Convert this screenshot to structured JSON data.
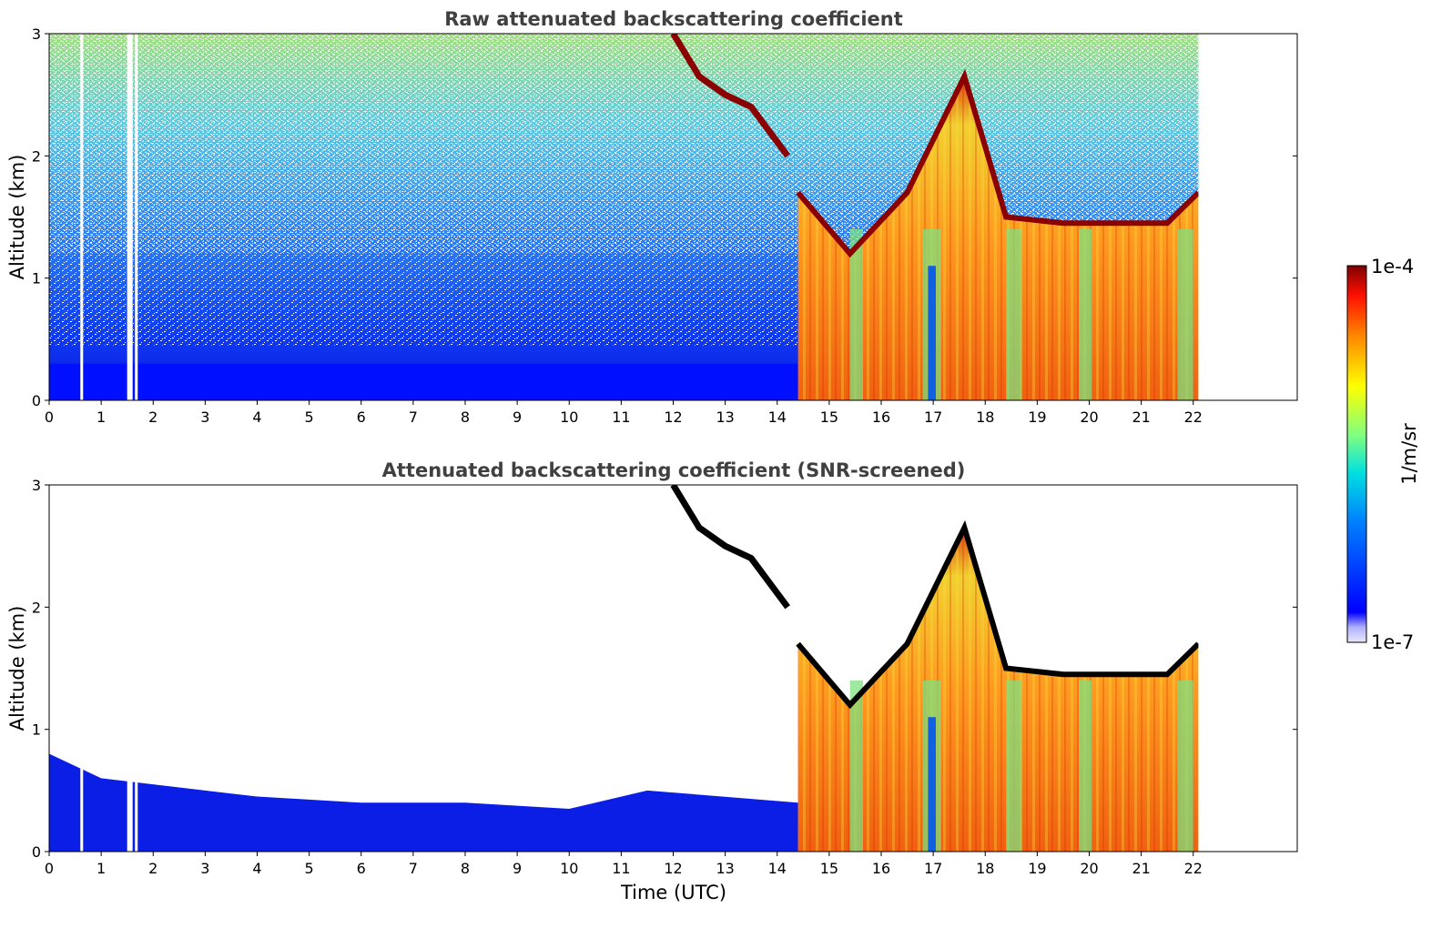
{
  "chart_data": [
    {
      "type": "heatmap",
      "title": "Raw attenuated backscattering coefficient",
      "xlabel": "",
      "ylabel": "Altitude (km)",
      "xlim": [
        0,
        24
      ],
      "ylim": [
        0,
        3
      ],
      "xticks": [
        "0",
        "1",
        "2",
        "3",
        "4",
        "5",
        "6",
        "7",
        "8",
        "9",
        "10",
        "11",
        "12",
        "13",
        "14",
        "15",
        "16",
        "17",
        "18",
        "19",
        "20",
        "21",
        "22"
      ],
      "yticks": [
        "0",
        "1",
        "2",
        "3"
      ],
      "data_end_time": 22.1,
      "features": [
        {
          "name": "noise floor (blue, surface layer)",
          "time_range": [
            0,
            14.4
          ],
          "altitude_range": [
            0,
            0.3
          ]
        },
        {
          "name": "data gaps",
          "times": [
            0.6,
            1.5,
            1.65
          ]
        },
        {
          "name": "descending layer",
          "points": [
            [
              12.0,
              3.0
            ],
            [
              12.5,
              2.65
            ],
            [
              13.0,
              2.5
            ],
            [
              13.5,
              2.4
            ]
          ]
        },
        {
          "name": "fog / low cloud onset",
          "time": 14.4
        },
        {
          "name": "cloud top",
          "points": [
            [
              14.4,
              1.7
            ],
            [
              15.4,
              1.2
            ],
            [
              16.5,
              1.7
            ],
            [
              17.6,
              2.65
            ],
            [
              18.4,
              1.5
            ],
            [
              19.5,
              1.45
            ],
            [
              20.5,
              1.45
            ],
            [
              21.5,
              1.45
            ],
            [
              22.1,
              1.7
            ]
          ]
        }
      ],
      "grid": false
    },
    {
      "type": "heatmap",
      "title": "Attenuated backscattering coefficient (SNR-screened)",
      "xlabel": "Time (UTC)",
      "ylabel": "Altitude (km)",
      "xlim": [
        0,
        24
      ],
      "ylim": [
        0,
        3
      ],
      "xticks": [
        "0",
        "1",
        "2",
        "3",
        "4",
        "5",
        "6",
        "7",
        "8",
        "9",
        "10",
        "11",
        "12",
        "13",
        "14",
        "15",
        "16",
        "17",
        "18",
        "19",
        "20",
        "21",
        "22"
      ],
      "yticks": [
        "0",
        "1",
        "2",
        "3"
      ],
      "data_end_time": 22.1,
      "boundary_layer_top": [
        [
          0,
          0.8
        ],
        [
          1,
          0.6
        ],
        [
          2,
          0.55
        ],
        [
          4,
          0.45
        ],
        [
          6,
          0.4
        ],
        [
          8,
          0.4
        ],
        [
          10,
          0.35
        ],
        [
          11.5,
          0.5
        ],
        [
          14.4,
          0.4
        ]
      ],
      "grid": false
    }
  ],
  "colorbar": {
    "label": "1/m/sr",
    "max_label": "1e-4",
    "min_label": "1e-7",
    "colormap": "jet",
    "max_color": "#7f0000",
    "min_color": "#e8e8f8"
  },
  "colors": {
    "noise_blue": "#0a1ee6",
    "ground_blue": "#0010ff",
    "cloud_red": "#8b0000",
    "fog_orange": "#f08010",
    "fog_green": "#7fe07f",
    "screened_black": "#000000"
  }
}
